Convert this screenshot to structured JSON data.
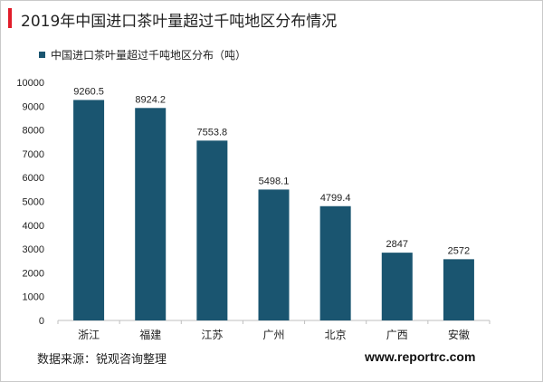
{
  "title": "2019年中国进口茶叶量超过千吨地区分布情况",
  "source": "数据来源：锐观咨询整理",
  "watermark": "www.reportrc.com",
  "colors": {
    "accent": "#e11d2a",
    "bar": "#1a5570",
    "axis": "#bfbfbf",
    "text": "#222222"
  },
  "chart_data": {
    "type": "bar",
    "categories": [
      "浙江",
      "福建",
      "江苏",
      "广州",
      "北京",
      "广西",
      "安徽"
    ],
    "series": [
      {
        "name": "中国进口茶叶量超过千吨地区分布（吨）",
        "values": [
          9260.5,
          8924.2,
          7553.8,
          5498.1,
          4799.4,
          2847,
          2572
        ],
        "labels": [
          "9260.5",
          "8924.2",
          "7553.8",
          "5498.1",
          "4799.4",
          "2847",
          "2572"
        ]
      }
    ],
    "yticks": [
      0,
      1000,
      2000,
      3000,
      4000,
      5000,
      6000,
      7000,
      8000,
      9000,
      10000
    ],
    "ylim": [
      0,
      10000
    ],
    "legend_position": "top-left",
    "grid": false
  }
}
